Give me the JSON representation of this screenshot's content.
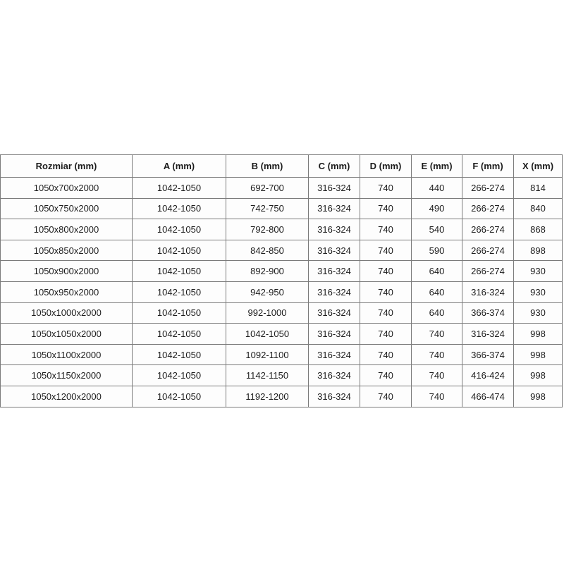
{
  "table": {
    "headers": [
      "Rozmiar (mm)",
      "A (mm)",
      "B (mm)",
      "C (mm)",
      "D (mm)",
      "E (mm)",
      "F (mm)",
      "X (mm)"
    ],
    "rows": [
      [
        "1050x700x2000",
        "1042-1050",
        "692-700",
        "316-324",
        "740",
        "440",
        "266-274",
        "814"
      ],
      [
        "1050x750x2000",
        "1042-1050",
        "742-750",
        "316-324",
        "740",
        "490",
        "266-274",
        "840"
      ],
      [
        "1050x800x2000",
        "1042-1050",
        "792-800",
        "316-324",
        "740",
        "540",
        "266-274",
        "868"
      ],
      [
        "1050x850x2000",
        "1042-1050",
        "842-850",
        "316-324",
        "740",
        "590",
        "266-274",
        "898"
      ],
      [
        "1050x900x2000",
        "1042-1050",
        "892-900",
        "316-324",
        "740",
        "640",
        "266-274",
        "930"
      ],
      [
        "1050x950x2000",
        "1042-1050",
        "942-950",
        "316-324",
        "740",
        "640",
        "316-324",
        "930"
      ],
      [
        "1050x1000x2000",
        "1042-1050",
        "992-1000",
        "316-324",
        "740",
        "640",
        "366-374",
        "930"
      ],
      [
        "1050x1050x2000",
        "1042-1050",
        "1042-1050",
        "316-324",
        "740",
        "740",
        "316-324",
        "998"
      ],
      [
        "1050x1100x2000",
        "1042-1050",
        "1092-1100",
        "316-324",
        "740",
        "740",
        "366-374",
        "998"
      ],
      [
        "1050x1150x2000",
        "1042-1050",
        "1142-1150",
        "316-324",
        "740",
        "740",
        "416-424",
        "998"
      ],
      [
        "1050x1200x2000",
        "1042-1050",
        "1192-1200",
        "316-324",
        "740",
        "740",
        "466-474",
        "998"
      ]
    ]
  },
  "colors": {
    "border": "#7b7b7b",
    "text": "#1c1c1c",
    "cell_background": "#fdfdfd",
    "page_background": "#ffffff"
  }
}
